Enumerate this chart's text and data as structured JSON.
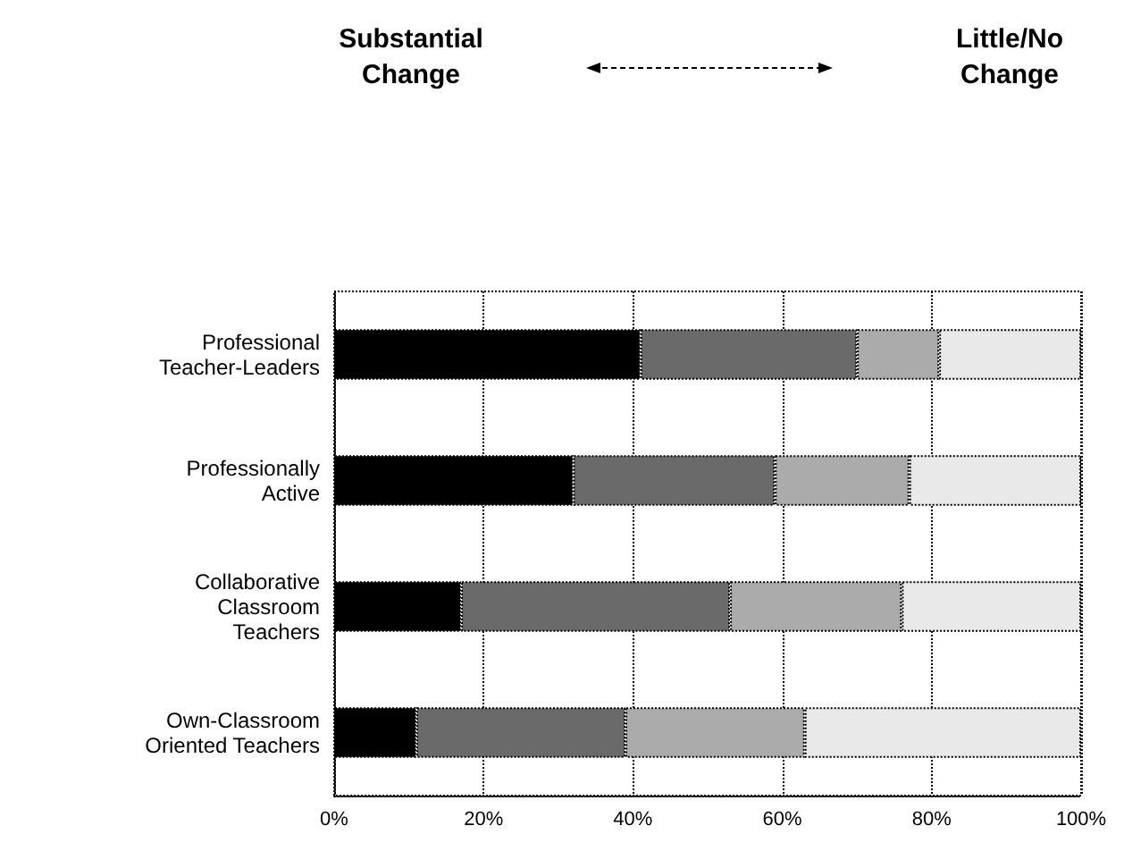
{
  "chart_data": {
    "type": "bar",
    "orientation": "horizontal",
    "stacked": true,
    "categories": [
      "Professional\nTeacher-Leaders",
      "Professionally\nActive",
      "Collaborative\nClassroom\nTeachers",
      "Own-Classroom\nOriented Teachers"
    ],
    "series": [
      {
        "color": "#000000",
        "values": [
          41,
          32,
          17,
          11
        ]
      },
      {
        "color": "#6a6a6a",
        "values": [
          29,
          27,
          36,
          28
        ]
      },
      {
        "color": "#ababab",
        "values": [
          11,
          18,
          23,
          24
        ]
      },
      {
        "color": "#e9e9e9",
        "values": [
          19,
          23,
          24,
          37
        ]
      }
    ],
    "xlim": [
      0,
      100
    ],
    "xticks": [
      {
        "value": 0,
        "label": "0%"
      },
      {
        "value": 20,
        "label": "20%"
      },
      {
        "value": 40,
        "label": "40%"
      },
      {
        "value": 60,
        "label": "60%"
      },
      {
        "value": 80,
        "label": "80%"
      },
      {
        "value": 100,
        "label": "100%"
      }
    ],
    "grid": "x",
    "annotations": [
      "Substantial\nChange",
      "Little/No\nChange"
    ]
  }
}
